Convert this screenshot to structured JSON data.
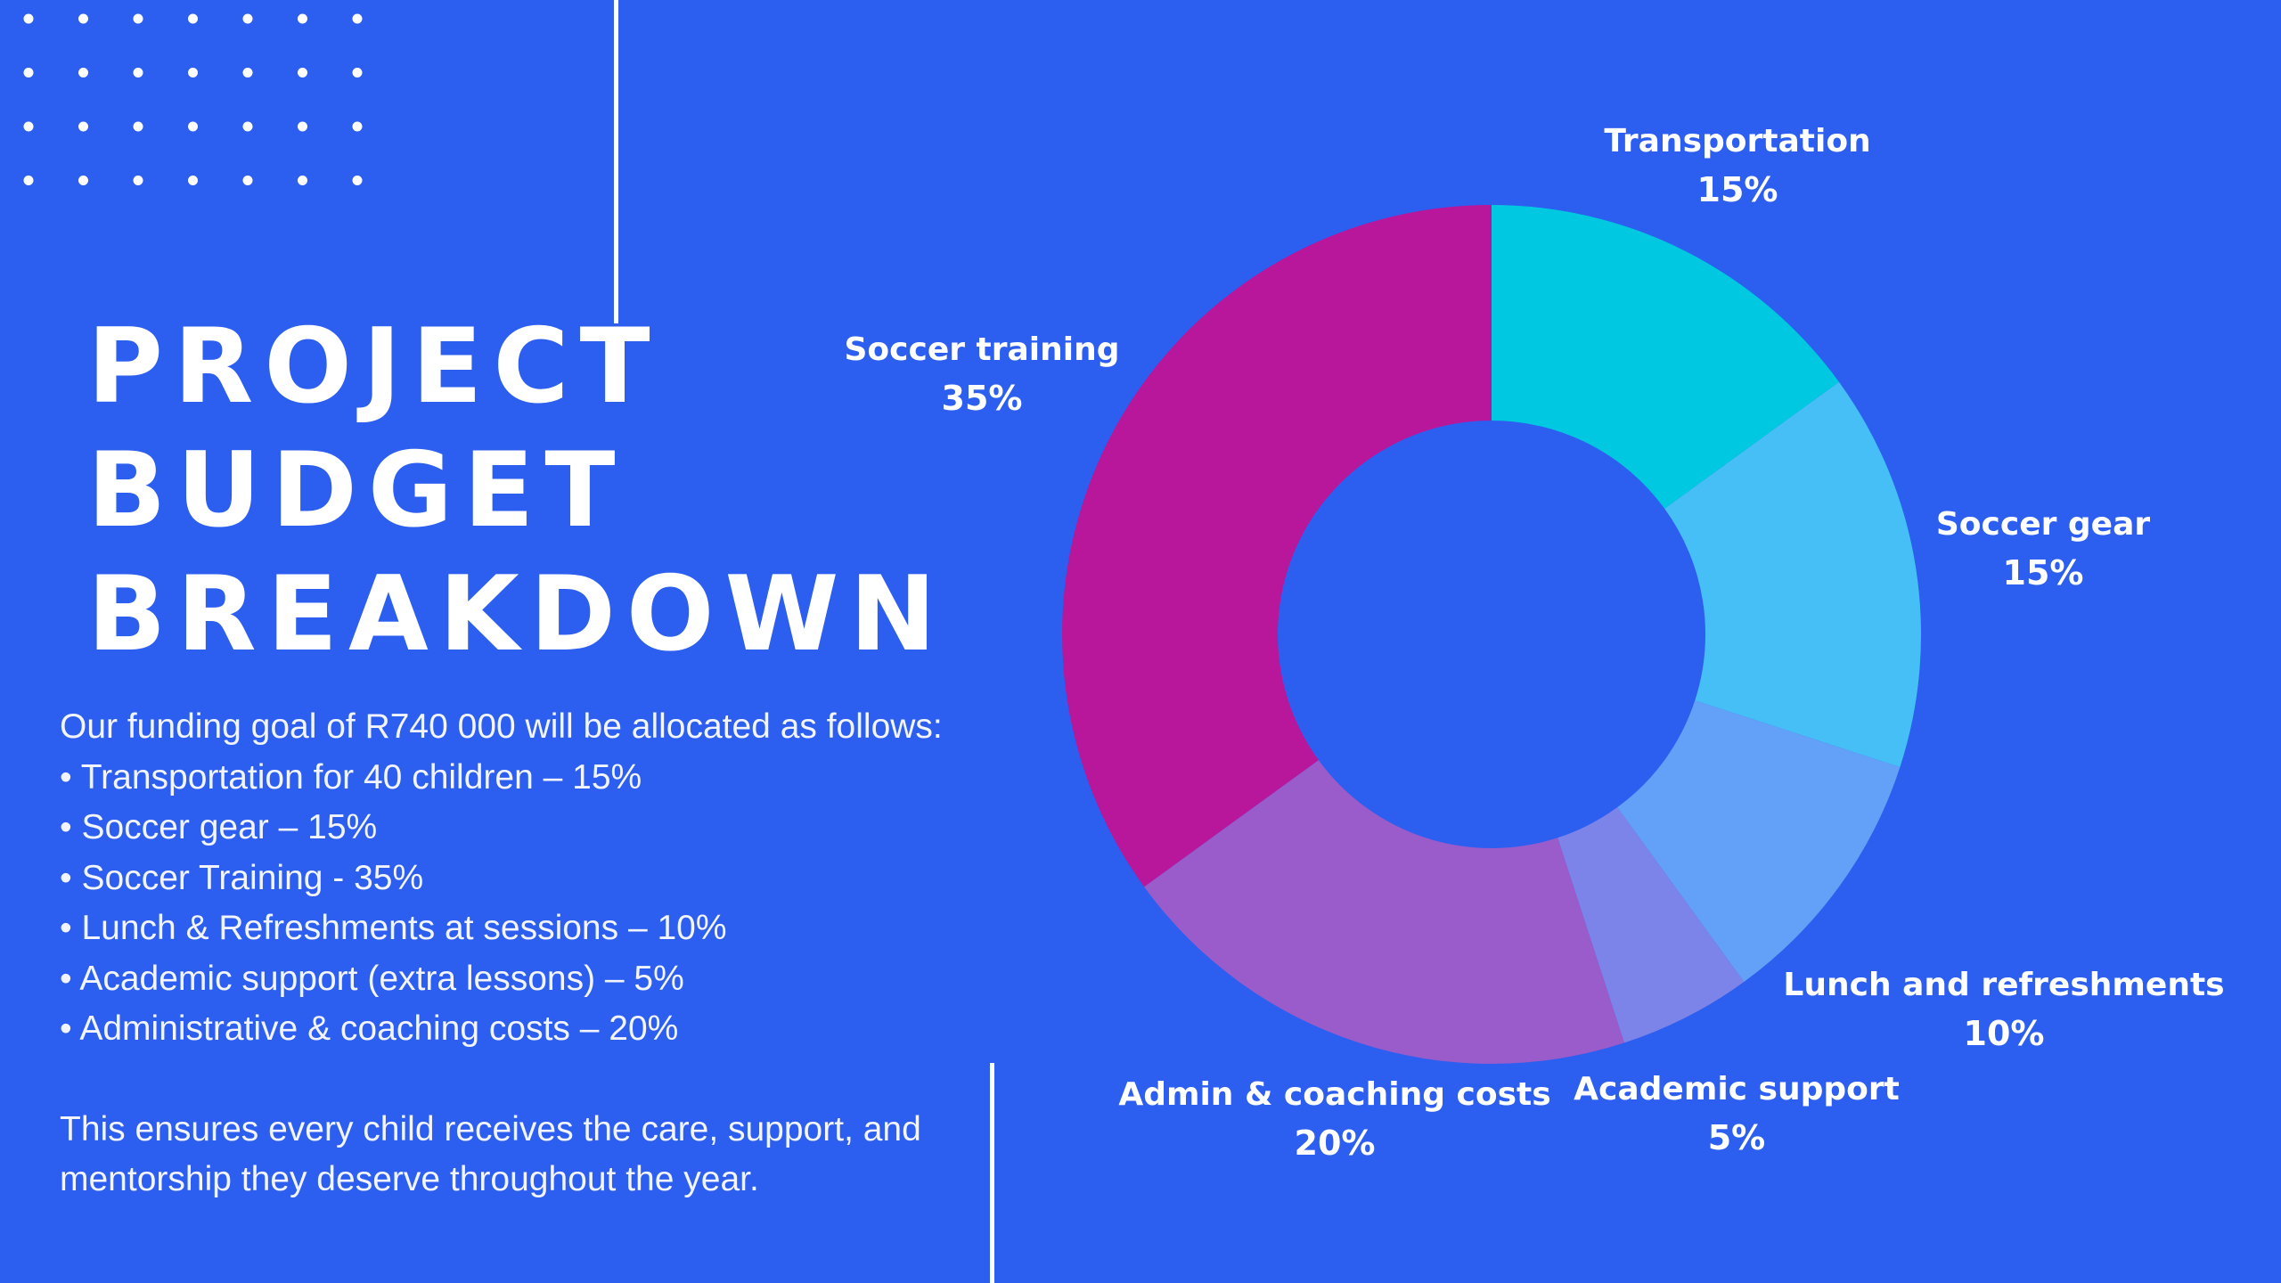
{
  "title": "PROJECT\nBUDGET\nBREAKDOWN",
  "description": {
    "intro": "Our funding goal of R740 000 will be allocated as follows:",
    "bullets": [
      "• Transportation for 40 children – 15%",
      "• Soccer gear – 15%",
      "• Soccer Training - 35%",
      "• Lunch & Refreshments at sessions – 10%",
      "• Academic support (extra lessons) – 5%",
      "• Administrative & coaching costs – 20%"
    ],
    "closing": "This ensures every child receives the care, support, and mentorship they deserve throughout the year."
  },
  "colors": {
    "background": "#2c5ef0",
    "text": "#ffffff"
  },
  "chart_data": {
    "type": "pie",
    "donut": true,
    "start_angle_deg": 0,
    "direction": "clockwise",
    "slices": [
      {
        "name": "Transportation",
        "value": 15,
        "label": "15%",
        "color": "#00c8e0"
      },
      {
        "name": "Soccer gear",
        "value": 15,
        "label": "15%",
        "color": "#46bff7"
      },
      {
        "name": "Lunch and refreshments",
        "value": 10,
        "label": "10%",
        "color": "#62a1f7"
      },
      {
        "name": "Academic support",
        "value": 5,
        "label": "5%",
        "color": "#7c84ea"
      },
      {
        "name": "Admin & coaching costs",
        "value": 20,
        "label": "20%",
        "color": "#9a5bcb"
      },
      {
        "name": "Soccer training",
        "value": 35,
        "label": "35%",
        "color": "#b8179c"
      }
    ]
  }
}
